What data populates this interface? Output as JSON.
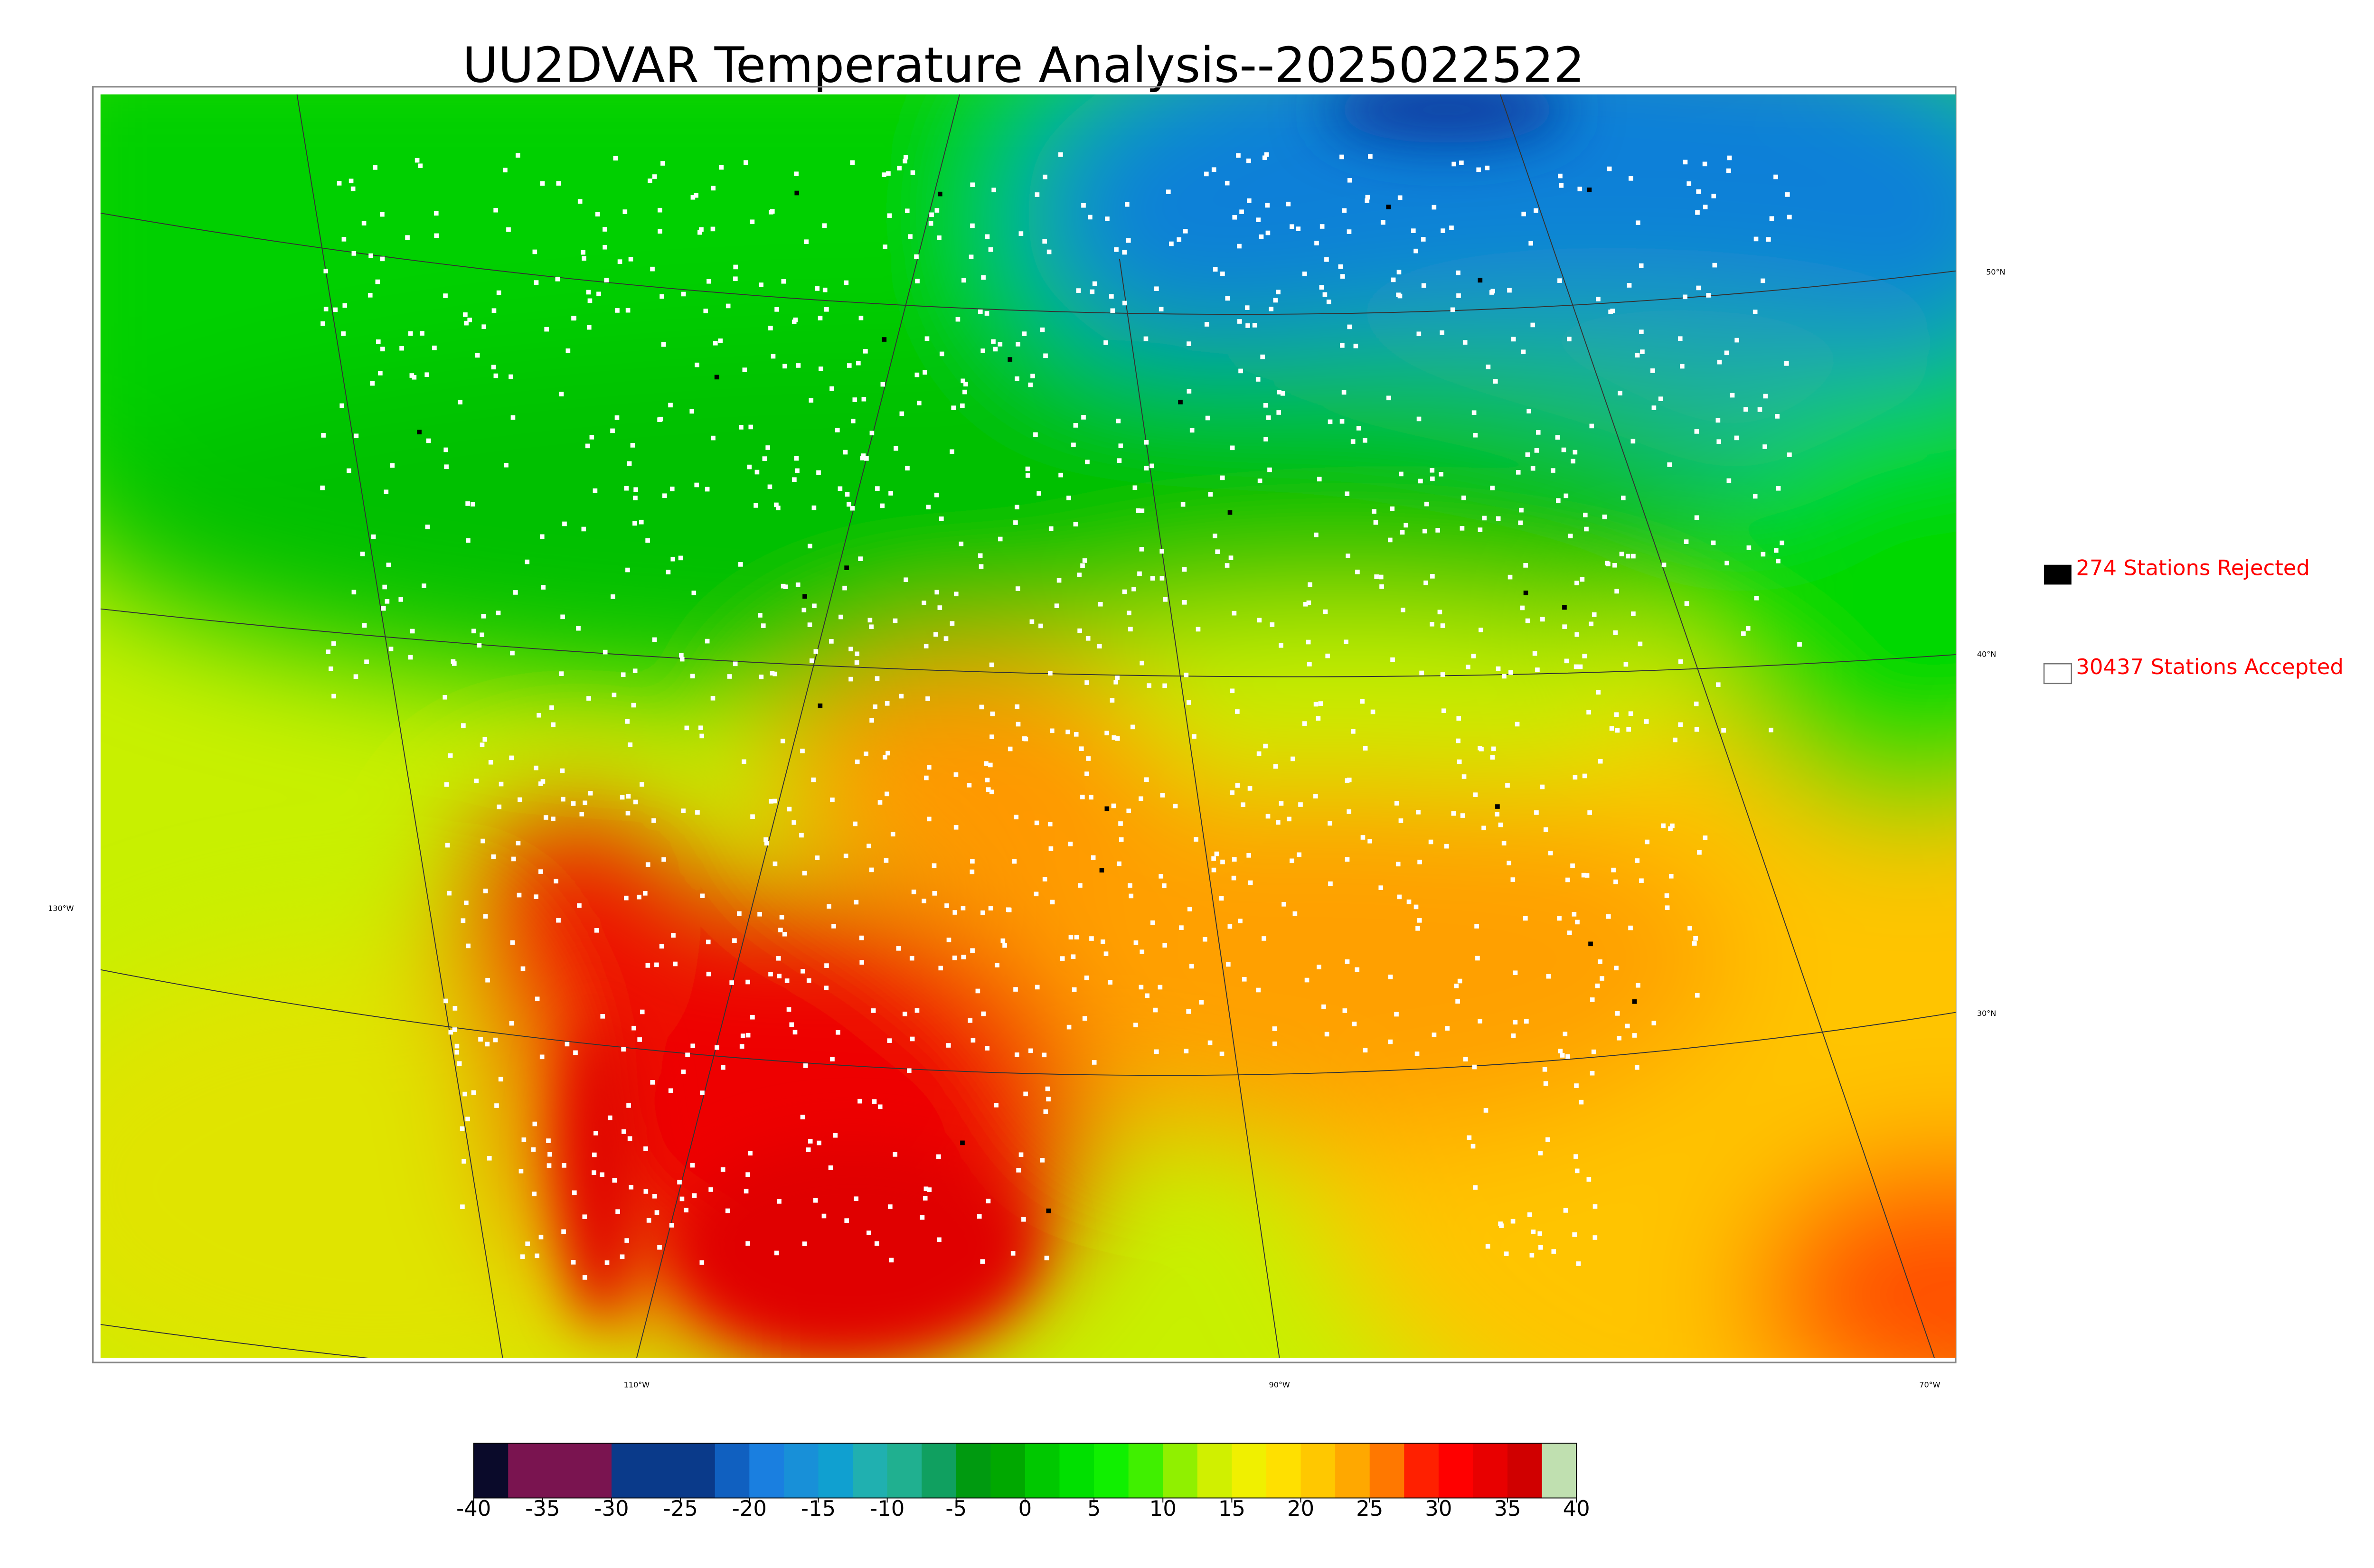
{
  "title": "UU2DVAR Temperature Analysis--2025022522",
  "legend": [
    {
      "label": "274 Stations Rejected",
      "color": "#000000"
    },
    {
      "label": "30437 Stations Accepted",
      "color": "#ffffff"
    }
  ],
  "graticule_labels": {
    "lat": [
      "50°N",
      "40°N",
      "30°N"
    ],
    "lon": [
      "130°W",
      "110°W",
      "90°W",
      "70°W"
    ]
  },
  "colorbar": {
    "lim": [
      -40,
      40
    ],
    "ticks": [
      -40,
      -35,
      -30,
      -25,
      -20,
      -15,
      -10,
      -5,
      0,
      5,
      10,
      15,
      20,
      25,
      30,
      35,
      40
    ],
    "colors": [
      "#0a0a2a",
      "#7a1450",
      "#7a1450",
      "#7a1450",
      "#0a3a8a",
      "#0a3a8a",
      "#0a3a8a",
      "#1060c0",
      "#1a7fe0",
      "#1890d8",
      "#10a0d0",
      "#20b0b0",
      "#20b090",
      "#10a060",
      "#009a10",
      "#00a800",
      "#00c800",
      "#00e000",
      "#10f000",
      "#40f000",
      "#90f000",
      "#d0f000",
      "#f0f000",
      "#ffe000",
      "#ffc800",
      "#ffa800",
      "#ff7800",
      "#ff2000",
      "#ff0000",
      "#e80000",
      "#d00000",
      "#c0e0b0"
    ]
  }
}
